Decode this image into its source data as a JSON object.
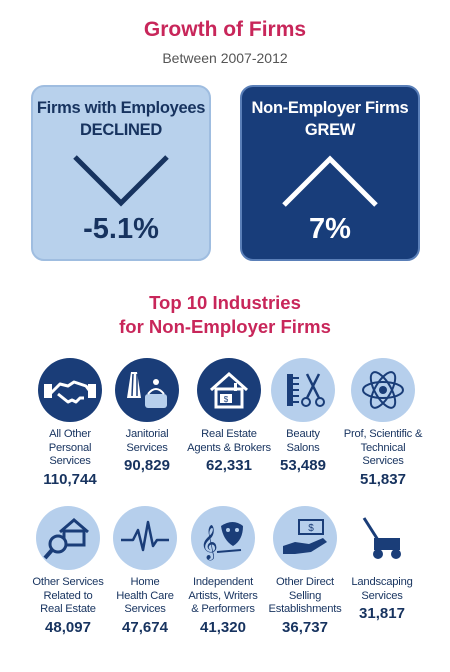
{
  "header": {
    "title": "Growth of Firms",
    "subtitle": "Between 2007-2012"
  },
  "cards": {
    "left": {
      "line1": "Firms with Employees",
      "line2": "DECLINED",
      "value": "-5.1%",
      "direction": "down"
    },
    "right": {
      "line1": "Non-Employer Firms",
      "line2": "GREW",
      "value": "7%",
      "direction": "up"
    }
  },
  "section": {
    "line1": "Top 10 Industries",
    "line2": "for Non-Employer Firms"
  },
  "industries": [
    {
      "l1": "All Other",
      "l2": "Personal Services",
      "l3": "",
      "value": "110,744",
      "icon": "handshake-icon"
    },
    {
      "l1": "Janitorial",
      "l2": "Services",
      "l3": "",
      "value": "90,829",
      "icon": "cleaning-supplies-icon"
    },
    {
      "l1": "Real Estate",
      "l2": "Agents & Brokers",
      "l3": "",
      "value": "62,331",
      "icon": "house-money-icon"
    },
    {
      "l1": "Beauty",
      "l2": "Salons",
      "l3": "",
      "value": "53,489",
      "icon": "comb-scissors-icon"
    },
    {
      "l1": "Prof, Scientific &",
      "l2": "Technical Services",
      "l3": "",
      "value": "51,837",
      "icon": "atom-icon"
    },
    {
      "l1": "Other Services",
      "l2": "Related to",
      "l3": "Real Estate",
      "value": "48,097",
      "icon": "house-magnifier-icon"
    },
    {
      "l1": "Home",
      "l2": "Health Care",
      "l3": "Services",
      "value": "47,674",
      "icon": "heartbeat-icon"
    },
    {
      "l1": "Independent",
      "l2": "Artists, Writers",
      "l3": "& Performers",
      "value": "41,320",
      "icon": "music-mask-icon"
    },
    {
      "l1": "Other Direct",
      "l2": "Selling",
      "l3": "Establishments",
      "value": "36,737",
      "icon": "hand-money-icon"
    },
    {
      "l1": "",
      "l2": "Landscaping",
      "l3": "Services",
      "value": "31,817",
      "icon": "lawnmower-icon"
    }
  ],
  "colors": {
    "accent": "#c8265a",
    "navy": "#1a3d78",
    "light_blue": "#b6cfec"
  }
}
